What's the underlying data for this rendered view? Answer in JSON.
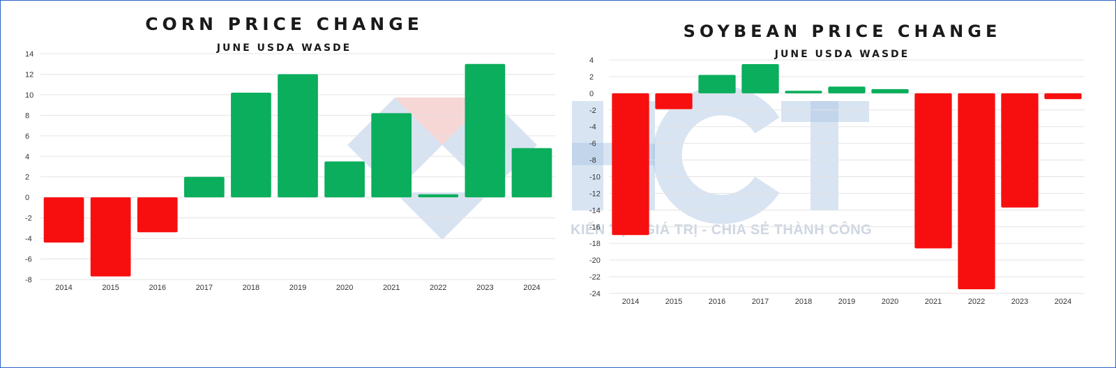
{
  "colors": {
    "positive": "#0aae5c",
    "negative": "#f70f0f",
    "grid": "#e3e3e3",
    "axis_text": "#333333"
  },
  "watermark": {
    "logo": "HCT",
    "tagline": "KIẾN TẠO GIÁ TRỊ - CHIA SẺ THÀNH CÔNG"
  },
  "chart_data": [
    {
      "type": "bar",
      "title": "CORN PRICE CHANGE",
      "subtitle": "JUNE USDA WASDE",
      "xlabel": "",
      "ylabel": "",
      "categories": [
        "2014",
        "2015",
        "2016",
        "2017",
        "2018",
        "2019",
        "2020",
        "2021",
        "2022",
        "2023",
        "2024"
      ],
      "values": [
        -4.4,
        -7.7,
        -3.4,
        2.0,
        10.2,
        12.0,
        3.5,
        8.2,
        0.3,
        13.0,
        4.8
      ],
      "ylim": [
        -8,
        14
      ],
      "yticks": [
        14,
        12,
        10,
        8,
        6,
        4,
        2,
        0,
        -2,
        -4,
        -6,
        -8
      ],
      "grid": true,
      "legend": "none"
    },
    {
      "type": "bar",
      "title": "SOYBEAN PRICE CHANGE",
      "subtitle": "JUNE USDA WASDE",
      "xlabel": "",
      "ylabel": "",
      "categories": [
        "2014",
        "2015",
        "2016",
        "2017",
        "2018",
        "2019",
        "2020",
        "2021",
        "2022",
        "2023",
        "2024"
      ],
      "values": [
        -17.0,
        -1.9,
        2.2,
        3.5,
        0.3,
        0.8,
        0.5,
        -18.6,
        -23.5,
        -13.7,
        -0.7
      ],
      "ylim": [
        -24,
        4
      ],
      "yticks": [
        4,
        2,
        0,
        -2,
        -4,
        -6,
        -8,
        -10,
        -12,
        -14,
        -16,
        -18,
        -20,
        -22,
        -24
      ],
      "grid": true,
      "legend": "none"
    }
  ]
}
